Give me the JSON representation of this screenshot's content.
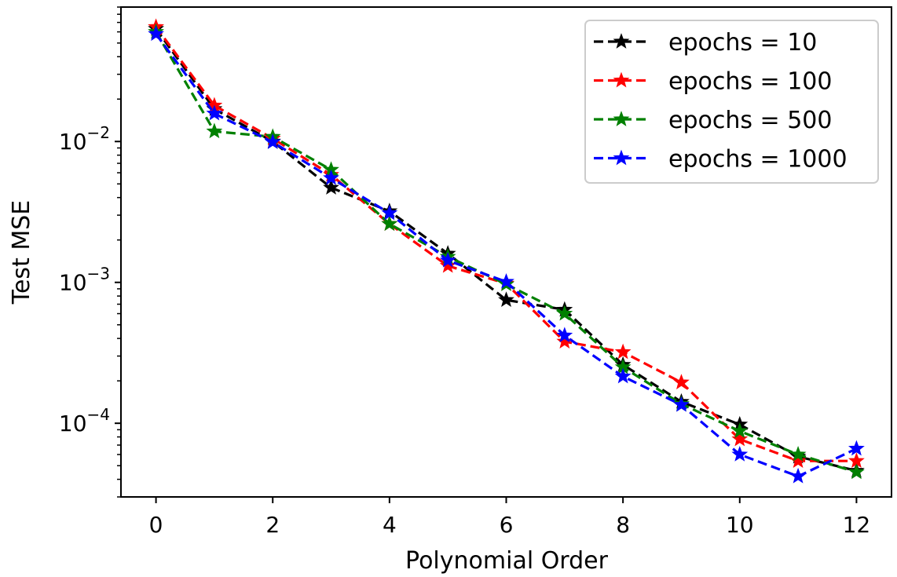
{
  "chart_data": {
    "type": "line",
    "title": "",
    "xlabel": "Polynomial Order",
    "ylabel": "Test MSE",
    "yscale": "log",
    "x": [
      0,
      1,
      2,
      3,
      4,
      5,
      6,
      7,
      8,
      9,
      10,
      11,
      12
    ],
    "xticks": [
      0,
      2,
      4,
      6,
      8,
      10,
      12
    ],
    "xlim": [
      -0.6,
      12.6
    ],
    "ylim": [
      3e-05,
      0.09
    ],
    "yticks": [
      {
        "base": "10",
        "exp": "−2",
        "value": 0.01
      },
      {
        "base": "10",
        "exp": "−3",
        "value": 0.001
      },
      {
        "base": "10",
        "exp": "−4",
        "value": 0.0001
      }
    ],
    "grid": false,
    "legend_position": "top-right",
    "marker": "star",
    "line_style": "dashed",
    "series": [
      {
        "name": "epochs = 10",
        "color": "#000000",
        "values": [
          0.063,
          0.017,
          0.01,
          0.0047,
          0.0032,
          0.0016,
          0.00075,
          0.00064,
          0.00026,
          0.000142,
          9.8e-05,
          5.8e-05,
          4.6e-05
        ]
      },
      {
        "name": "epochs = 100",
        "color": "#ff0000",
        "values": [
          0.065,
          0.018,
          0.0105,
          0.0058,
          0.0026,
          0.00131,
          0.00098,
          0.00038,
          0.00032,
          0.000195,
          7.7e-05,
          5.4e-05,
          5.4e-05
        ]
      },
      {
        "name": "epochs = 500",
        "color": "#008000",
        "values": [
          0.06,
          0.0118,
          0.0108,
          0.0063,
          0.0026,
          0.00152,
          0.00097,
          0.0006,
          0.00025,
          0.000137,
          8.8e-05,
          6e-05,
          4.5e-05
        ]
      },
      {
        "name": "epochs = 1000",
        "color": "#0000ff",
        "values": [
          0.058,
          0.0158,
          0.0099,
          0.0055,
          0.0031,
          0.00143,
          0.00101,
          0.00042,
          0.000215,
          0.000135,
          6e-05,
          4.2e-05,
          6.6e-05
        ]
      }
    ]
  }
}
